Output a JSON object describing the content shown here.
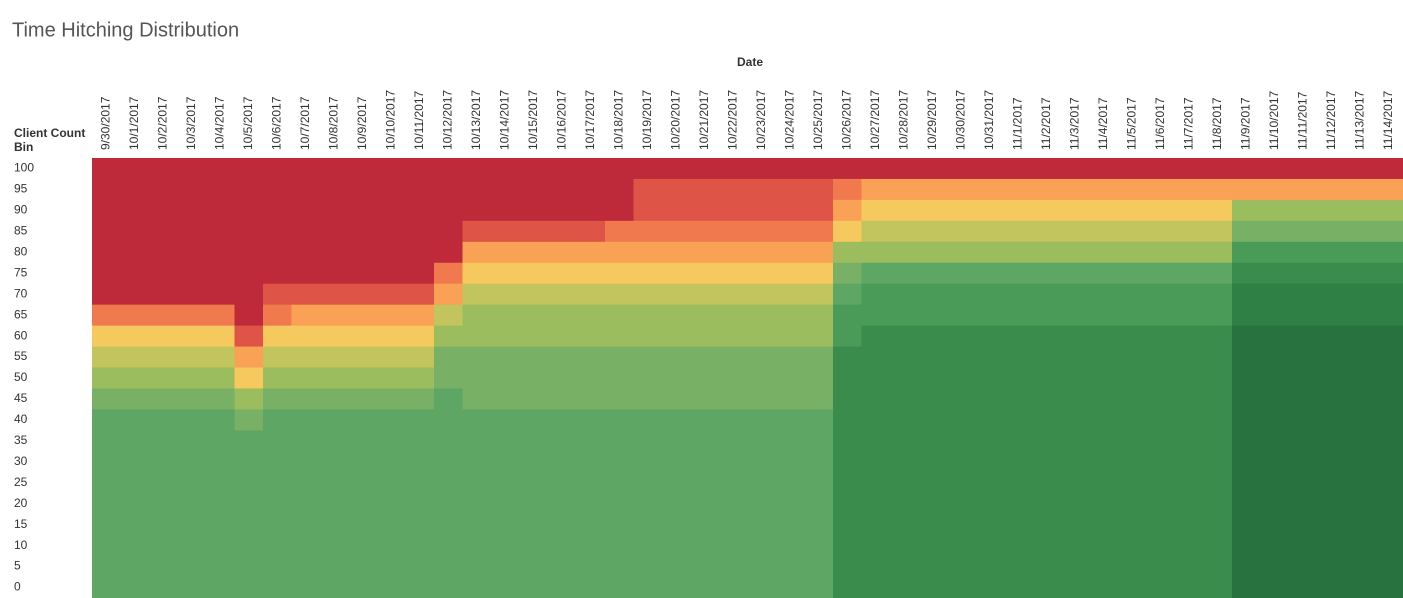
{
  "chart_data": {
    "type": "heatmap",
    "title": "Time Hitching Distribution",
    "x_label": "Date",
    "y_label": "Client Count Bin",
    "categories": [
      "9/30/2017",
      "10/1/2017",
      "10/2/2017",
      "10/3/2017",
      "10/4/2017",
      "10/5/2017",
      "10/6/2017",
      "10/7/2017",
      "10/8/2017",
      "10/9/2017",
      "10/10/2017",
      "10/11/2017",
      "10/12/2017",
      "10/13/2017",
      "10/14/2017",
      "10/15/2017",
      "10/16/2017",
      "10/17/2017",
      "10/18/2017",
      "10/19/2017",
      "10/20/2017",
      "10/21/2017",
      "10/22/2017",
      "10/23/2017",
      "10/24/2017",
      "10/25/2017",
      "10/26/2017",
      "10/27/2017",
      "10/28/2017",
      "10/29/2017",
      "10/30/2017",
      "10/31/2017",
      "11/1/2017",
      "11/2/2017",
      "11/3/2017",
      "11/4/2017",
      "11/5/2017",
      "11/6/2017",
      "11/7/2017",
      "11/8/2017",
      "11/9/2017",
      "11/10/2017",
      "11/11/2017",
      "11/12/2017",
      "11/13/2017",
      "11/14/2017"
    ],
    "bins": [
      100,
      95,
      90,
      85,
      80,
      75,
      70,
      65,
      60,
      55,
      50,
      45,
      40,
      35,
      30,
      25,
      20,
      15,
      10,
      5,
      0
    ],
    "zlim": [
      0,
      12
    ],
    "colors": [
      "#27723f",
      "#2f8044",
      "#3a8c4c",
      "#4a9a58",
      "#5ea664",
      "#78b065",
      "#9cbd5e",
      "#c2c45e",
      "#f6c95e",
      "#f9a155",
      "#f07a4e",
      "#de5446",
      "#bf2a3b"
    ],
    "values": [
      [
        12,
        12,
        12,
        12,
        12,
        12,
        12,
        10,
        8,
        7,
        6,
        5,
        4,
        4,
        4,
        4,
        4,
        4,
        4,
        4,
        4
      ],
      [
        12,
        12,
        12,
        12,
        12,
        12,
        12,
        10,
        8,
        7,
        6,
        5,
        4,
        4,
        4,
        4,
        4,
        4,
        4,
        4,
        4
      ],
      [
        12,
        12,
        12,
        12,
        12,
        12,
        12,
        10,
        8,
        7,
        6,
        5,
        4,
        4,
        4,
        4,
        4,
        4,
        4,
        4,
        4
      ],
      [
        12,
        12,
        12,
        12,
        12,
        12,
        12,
        10,
        8,
        7,
        6,
        5,
        4,
        4,
        4,
        4,
        4,
        4,
        4,
        4,
        4
      ],
      [
        12,
        12,
        12,
        12,
        12,
        12,
        12,
        10,
        8,
        7,
        6,
        5,
        4,
        4,
        4,
        4,
        4,
        4,
        4,
        4,
        4
      ],
      [
        12,
        12,
        12,
        12,
        12,
        12,
        12,
        12,
        11,
        9,
        8,
        6,
        5,
        4,
        4,
        4,
        4,
        4,
        4,
        4,
        4
      ],
      [
        12,
        12,
        12,
        12,
        12,
        12,
        11,
        10,
        8,
        7,
        6,
        5,
        4,
        4,
        4,
        4,
        4,
        4,
        4,
        4,
        4
      ],
      [
        12,
        12,
        12,
        12,
        12,
        12,
        11,
        9,
        8,
        7,
        6,
        5,
        4,
        4,
        4,
        4,
        4,
        4,
        4,
        4,
        4
      ],
      [
        12,
        12,
        12,
        12,
        12,
        12,
        11,
        9,
        8,
        7,
        6,
        5,
        4,
        4,
        4,
        4,
        4,
        4,
        4,
        4,
        4
      ],
      [
        12,
        12,
        12,
        12,
        12,
        12,
        11,
        9,
        8,
        7,
        6,
        5,
        4,
        4,
        4,
        4,
        4,
        4,
        4,
        4,
        4
      ],
      [
        12,
        12,
        12,
        12,
        12,
        12,
        11,
        9,
        8,
        7,
        6,
        5,
        4,
        4,
        4,
        4,
        4,
        4,
        4,
        4,
        4
      ],
      [
        12,
        12,
        12,
        12,
        12,
        12,
        11,
        9,
        8,
        7,
        6,
        5,
        4,
        4,
        4,
        4,
        4,
        4,
        4,
        4,
        4
      ],
      [
        12,
        12,
        12,
        12,
        12,
        10,
        9,
        7,
        6,
        5,
        5,
        4,
        4,
        4,
        4,
        4,
        4,
        4,
        4,
        4,
        4
      ],
      [
        12,
        12,
        12,
        11,
        9,
        8,
        7,
        6,
        6,
        5,
        5,
        5,
        4,
        4,
        4,
        4,
        4,
        4,
        4,
        4,
        4
      ],
      [
        12,
        12,
        12,
        11,
        9,
        8,
        7,
        6,
        6,
        5,
        5,
        5,
        4,
        4,
        4,
        4,
        4,
        4,
        4,
        4,
        4
      ],
      [
        12,
        12,
        12,
        11,
        9,
        8,
        7,
        6,
        6,
        5,
        5,
        5,
        4,
        4,
        4,
        4,
        4,
        4,
        4,
        4,
        4
      ],
      [
        12,
        12,
        12,
        11,
        9,
        8,
        7,
        6,
        6,
        5,
        5,
        5,
        4,
        4,
        4,
        4,
        4,
        4,
        4,
        4,
        4
      ],
      [
        12,
        12,
        12,
        11,
        9,
        8,
        7,
        6,
        6,
        5,
        5,
        5,
        4,
        4,
        4,
        4,
        4,
        4,
        4,
        4,
        4
      ],
      [
        12,
        12,
        12,
        10,
        9,
        8,
        7,
        6,
        6,
        5,
        5,
        5,
        4,
        4,
        4,
        4,
        4,
        4,
        4,
        4,
        4
      ],
      [
        12,
        11,
        11,
        10,
        9,
        8,
        7,
        6,
        6,
        5,
        5,
        5,
        4,
        4,
        4,
        4,
        4,
        4,
        4,
        4,
        4
      ],
      [
        12,
        11,
        11,
        10,
        9,
        8,
        7,
        6,
        6,
        5,
        5,
        5,
        4,
        4,
        4,
        4,
        4,
        4,
        4,
        4,
        4
      ],
      [
        12,
        11,
        11,
        10,
        9,
        8,
        7,
        6,
        6,
        5,
        5,
        5,
        4,
        4,
        4,
        4,
        4,
        4,
        4,
        4,
        4
      ],
      [
        12,
        11,
        11,
        10,
        9,
        8,
        7,
        6,
        6,
        5,
        5,
        5,
        4,
        4,
        4,
        4,
        4,
        4,
        4,
        4,
        4
      ],
      [
        12,
        11,
        11,
        10,
        9,
        8,
        7,
        6,
        6,
        5,
        5,
        5,
        4,
        4,
        4,
        4,
        4,
        4,
        4,
        4,
        4
      ],
      [
        12,
        11,
        11,
        10,
        9,
        8,
        7,
        6,
        6,
        5,
        5,
        5,
        4,
        4,
        4,
        4,
        4,
        4,
        4,
        4,
        4
      ],
      [
        12,
        11,
        11,
        10,
        9,
        8,
        7,
        6,
        6,
        5,
        5,
        5,
        4,
        4,
        4,
        4,
        4,
        4,
        4,
        4,
        4
      ],
      [
        12,
        10,
        9,
        8,
        6,
        5,
        4,
        3,
        3,
        2,
        2,
        2,
        2,
        2,
        2,
        2,
        2,
        2,
        2,
        2,
        2
      ],
      [
        12,
        9,
        8,
        7,
        6,
        4,
        3,
        3,
        2,
        2,
        2,
        2,
        2,
        2,
        2,
        2,
        2,
        2,
        2,
        2,
        2
      ],
      [
        12,
        9,
        8,
        7,
        6,
        4,
        3,
        3,
        2,
        2,
        2,
        2,
        2,
        2,
        2,
        2,
        2,
        2,
        2,
        2,
        2
      ],
      [
        12,
        9,
        8,
        7,
        6,
        4,
        3,
        3,
        2,
        2,
        2,
        2,
        2,
        2,
        2,
        2,
        2,
        2,
        2,
        2,
        2
      ],
      [
        12,
        9,
        8,
        7,
        6,
        4,
        3,
        3,
        2,
        2,
        2,
        2,
        2,
        2,
        2,
        2,
        2,
        2,
        2,
        2,
        2
      ],
      [
        12,
        9,
        8,
        7,
        6,
        4,
        3,
        3,
        2,
        2,
        2,
        2,
        2,
        2,
        2,
        2,
        2,
        2,
        2,
        2,
        2
      ],
      [
        12,
        9,
        8,
        7,
        6,
        4,
        3,
        3,
        2,
        2,
        2,
        2,
        2,
        2,
        2,
        2,
        2,
        2,
        2,
        2,
        2
      ],
      [
        12,
        9,
        8,
        7,
        6,
        4,
        3,
        3,
        2,
        2,
        2,
        2,
        2,
        2,
        2,
        2,
        2,
        2,
        2,
        2,
        2
      ],
      [
        12,
        9,
        8,
        7,
        6,
        4,
        3,
        3,
        2,
        2,
        2,
        2,
        2,
        2,
        2,
        2,
        2,
        2,
        2,
        2,
        2
      ],
      [
        12,
        9,
        8,
        7,
        6,
        4,
        3,
        3,
        2,
        2,
        2,
        2,
        2,
        2,
        2,
        2,
        2,
        2,
        2,
        2,
        2
      ],
      [
        12,
        9,
        8,
        7,
        6,
        4,
        3,
        3,
        2,
        2,
        2,
        2,
        2,
        2,
        2,
        2,
        2,
        2,
        2,
        2,
        2
      ],
      [
        12,
        9,
        8,
        7,
        6,
        4,
        3,
        3,
        2,
        2,
        2,
        2,
        2,
        2,
        2,
        2,
        2,
        2,
        2,
        2,
        2
      ],
      [
        12,
        9,
        8,
        7,
        6,
        4,
        3,
        3,
        2,
        2,
        2,
        2,
        2,
        2,
        2,
        2,
        2,
        2,
        2,
        2,
        2
      ],
      [
        12,
        9,
        8,
        7,
        6,
        4,
        3,
        3,
        2,
        2,
        2,
        2,
        2,
        2,
        2,
        2,
        2,
        2,
        2,
        2,
        2
      ],
      [
        12,
        9,
        6,
        5,
        3,
        2,
        1,
        1,
        0,
        0,
        0,
        0,
        0,
        0,
        0,
        0,
        0,
        0,
        0,
        0,
        0
      ],
      [
        12,
        9,
        6,
        5,
        3,
        2,
        1,
        1,
        0,
        0,
        0,
        0,
        0,
        0,
        0,
        0,
        0,
        0,
        0,
        0,
        0
      ],
      [
        12,
        9,
        6,
        5,
        3,
        2,
        1,
        1,
        0,
        0,
        0,
        0,
        0,
        0,
        0,
        0,
        0,
        0,
        0,
        0,
        0
      ],
      [
        12,
        9,
        6,
        5,
        3,
        2,
        1,
        1,
        0,
        0,
        0,
        0,
        0,
        0,
        0,
        0,
        0,
        0,
        0,
        0,
        0
      ],
      [
        12,
        9,
        6,
        5,
        3,
        2,
        1,
        1,
        0,
        0,
        0,
        0,
        0,
        0,
        0,
        0,
        0,
        0,
        0,
        0,
        0
      ],
      [
        12,
        9,
        6,
        5,
        3,
        2,
        1,
        1,
        0,
        0,
        0,
        0,
        0,
        0,
        0,
        0,
        0,
        0,
        0,
        0,
        0
      ]
    ]
  }
}
